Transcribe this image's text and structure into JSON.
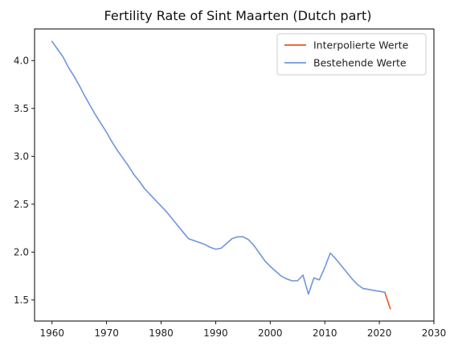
{
  "chart_data": {
    "type": "line",
    "title": "Fertility Rate of Sint Maarten (Dutch part)",
    "xlabel": "",
    "ylabel": "",
    "xlim": [
      1956.8,
      2030
    ],
    "ylim": [
      1.28,
      4.33
    ],
    "xticks": [
      1960,
      1970,
      1980,
      1990,
      2000,
      2010,
      2020,
      2030
    ],
    "yticks": [
      1.5,
      2.0,
      2.5,
      3.0,
      3.5,
      4.0
    ],
    "grid": false,
    "legend_position": "top-right",
    "series": [
      {
        "name": "Interpolierte Werte",
        "color": "#e8561e",
        "x": [
          2021,
          2022
        ],
        "y": [
          1.58,
          1.41
        ]
      },
      {
        "name": "Bestehende Werte",
        "color": "#6f96dc",
        "x": [
          1960,
          1961,
          1962,
          1963,
          1964,
          1965,
          1966,
          1967,
          1968,
          1969,
          1970,
          1971,
          1972,
          1973,
          1974,
          1975,
          1976,
          1977,
          1978,
          1979,
          1980,
          1981,
          1982,
          1983,
          1984,
          1985,
          1986,
          1987,
          1988,
          1989,
          1990,
          1991,
          1992,
          1993,
          1994,
          1995,
          1996,
          1997,
          1998,
          1999,
          2000,
          2001,
          2002,
          2003,
          2004,
          2005,
          2006,
          2007,
          2008,
          2009,
          2010,
          2011,
          2012,
          2013,
          2014,
          2015,
          2016,
          2017,
          2018,
          2019,
          2020,
          2021
        ],
        "y": [
          4.2,
          4.12,
          4.04,
          3.93,
          3.84,
          3.74,
          3.63,
          3.53,
          3.43,
          3.34,
          3.25,
          3.15,
          3.06,
          2.98,
          2.9,
          2.81,
          2.74,
          2.66,
          2.6,
          2.54,
          2.48,
          2.42,
          2.35,
          2.28,
          2.21,
          2.14,
          2.12,
          2.1,
          2.08,
          2.05,
          2.03,
          2.04,
          2.09,
          2.14,
          2.16,
          2.16,
          2.13,
          2.07,
          1.99,
          1.91,
          1.85,
          1.8,
          1.75,
          1.72,
          1.7,
          1.7,
          1.76,
          1.56,
          1.73,
          1.71,
          1.84,
          1.99,
          1.93,
          1.86,
          1.79,
          1.72,
          1.66,
          1.62,
          1.61,
          1.6,
          1.59,
          1.58
        ]
      }
    ]
  }
}
